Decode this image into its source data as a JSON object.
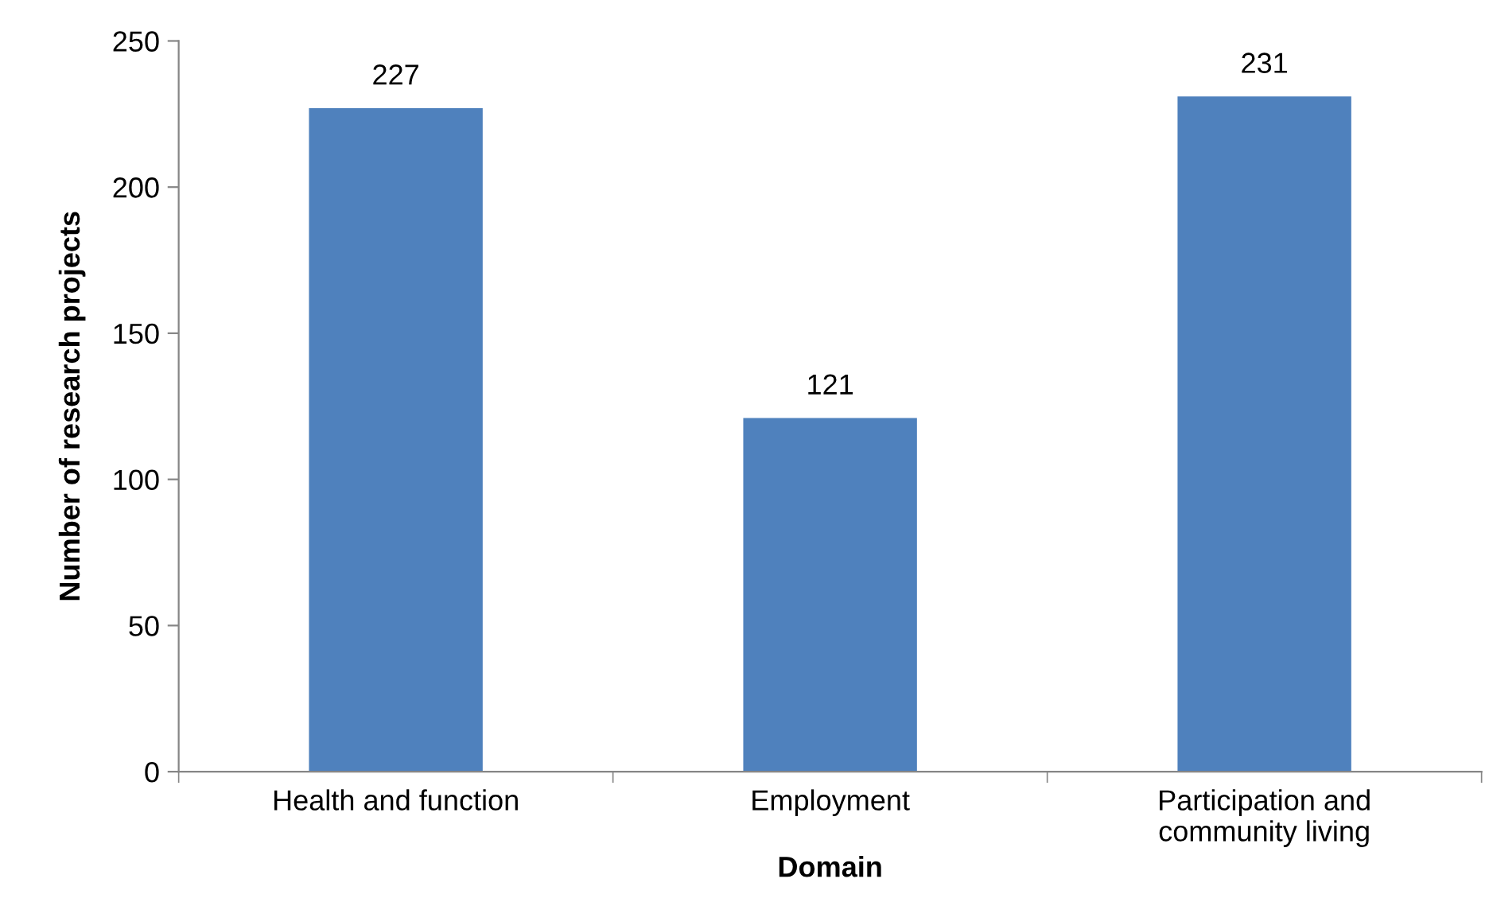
{
  "chart_data": {
    "type": "bar",
    "xlabel": "Domain",
    "ylabel": "Number of research projects",
    "categories": [
      "Health and function",
      "Employment",
      "Participation and\ncommunity living"
    ],
    "values": [
      227,
      121,
      231
    ],
    "color": "#4f81bd",
    "ylim": [
      0,
      250
    ],
    "yticks": [
      0,
      50,
      100,
      150,
      200,
      250
    ],
    "data_labels": true,
    "grid": false,
    "legend": false
  }
}
